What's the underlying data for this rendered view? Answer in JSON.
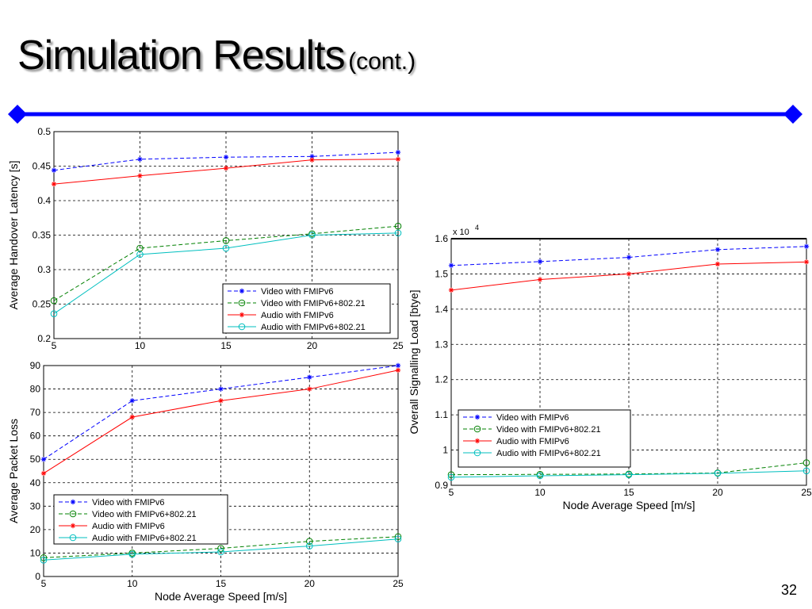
{
  "slide": {
    "title_main": "Simulation Results",
    "title_sub": "(cont.)",
    "page_number": "32",
    "divider_color": "#0000ff"
  },
  "series_styles": [
    {
      "color": "#0000ff",
      "dash": true,
      "marker": "star"
    },
    {
      "color": "#008000",
      "dash": true,
      "marker": "circle"
    },
    {
      "color": "#ff0000",
      "dash": false,
      "marker": "star"
    },
    {
      "color": "#00bfbf",
      "dash": false,
      "marker": "circle"
    }
  ],
  "chart_data": [
    {
      "type": "line",
      "title": "",
      "xlabel": "",
      "ylabel": "Average Handover Latency [s]",
      "x": [
        5,
        10,
        15,
        20,
        25
      ],
      "xlim": [
        5,
        25
      ],
      "ylim": [
        0.2,
        0.5
      ],
      "xticks": [
        "5",
        "10",
        "15",
        "20",
        "25"
      ],
      "yticks": [
        "0.2",
        "0.25",
        "0.3",
        "0.35",
        "0.4",
        "0.45",
        "0.5"
      ],
      "grid": true,
      "legend_position": "bottom-right",
      "series": [
        {
          "name": "Video with FMIPv6",
          "values": [
            0.444,
            0.46,
            0.463,
            0.464,
            0.47
          ]
        },
        {
          "name": "Video with FMIPv6+802.21",
          "values": [
            0.255,
            0.331,
            0.342,
            0.352,
            0.363
          ]
        },
        {
          "name": "Audio with FMIPv6",
          "values": [
            0.424,
            0.436,
            0.447,
            0.459,
            0.46
          ]
        },
        {
          "name": "Audio with FMIPv6+802.21",
          "values": [
            0.236,
            0.322,
            0.331,
            0.35,
            0.353
          ]
        }
      ]
    },
    {
      "type": "line",
      "title": "",
      "xlabel": "Node Average Speed [m/s]",
      "ylabel": "Average Packet Loss",
      "x": [
        5,
        10,
        15,
        20,
        25
      ],
      "xlim": [
        5,
        25
      ],
      "ylim": [
        0,
        90
      ],
      "xticks": [
        "5",
        "10",
        "15",
        "20",
        "25"
      ],
      "yticks": [
        "0",
        "10",
        "20",
        "30",
        "40",
        "50",
        "60",
        "70",
        "80",
        "90"
      ],
      "grid": true,
      "legend_position": "bottom-left",
      "series": [
        {
          "name": "Video with FMIPv6",
          "values": [
            50,
            75,
            80,
            85,
            90
          ]
        },
        {
          "name": "Video with FMIPv6+802.21",
          "values": [
            8,
            10,
            12,
            15,
            17
          ]
        },
        {
          "name": "Audio with FMIPv6",
          "values": [
            44,
            68,
            75,
            80,
            88
          ]
        },
        {
          "name": "Audio with FMIPv6+802.21",
          "values": [
            7,
            9.5,
            10.5,
            13,
            16
          ]
        }
      ]
    },
    {
      "type": "line",
      "title": "",
      "xlabel": "Node Average Speed [m/s]",
      "ylabel": "Overall Signalling Load [btye]",
      "scale_label": "x 10",
      "scale_exponent": "4",
      "x": [
        5,
        10,
        15,
        20,
        25
      ],
      "xlim": [
        5,
        25
      ],
      "ylim": [
        0.9,
        1.6
      ],
      "xticks": [
        "5",
        "10",
        "15",
        "20",
        "25"
      ],
      "yticks": [
        "0.9",
        "1",
        "1.1",
        "1.2",
        "1.3",
        "1.4",
        "1.5",
        "1.6"
      ],
      "grid": true,
      "legend_position": "bottom-left",
      "series": [
        {
          "name": "Video with FMIPv6",
          "values": [
            1.524,
            1.535,
            1.547,
            1.569,
            1.578
          ]
        },
        {
          "name": "Video with FMIPv6+802.21",
          "values": [
            0.93,
            0.931,
            0.932,
            0.935,
            0.964
          ]
        },
        {
          "name": "Audio with FMIPv6",
          "values": [
            1.454,
            1.484,
            1.5,
            1.528,
            1.534
          ]
        },
        {
          "name": "Audio with FMIPv6+802.21",
          "values": [
            0.923,
            0.927,
            0.93,
            0.934,
            0.941
          ]
        }
      ]
    }
  ]
}
